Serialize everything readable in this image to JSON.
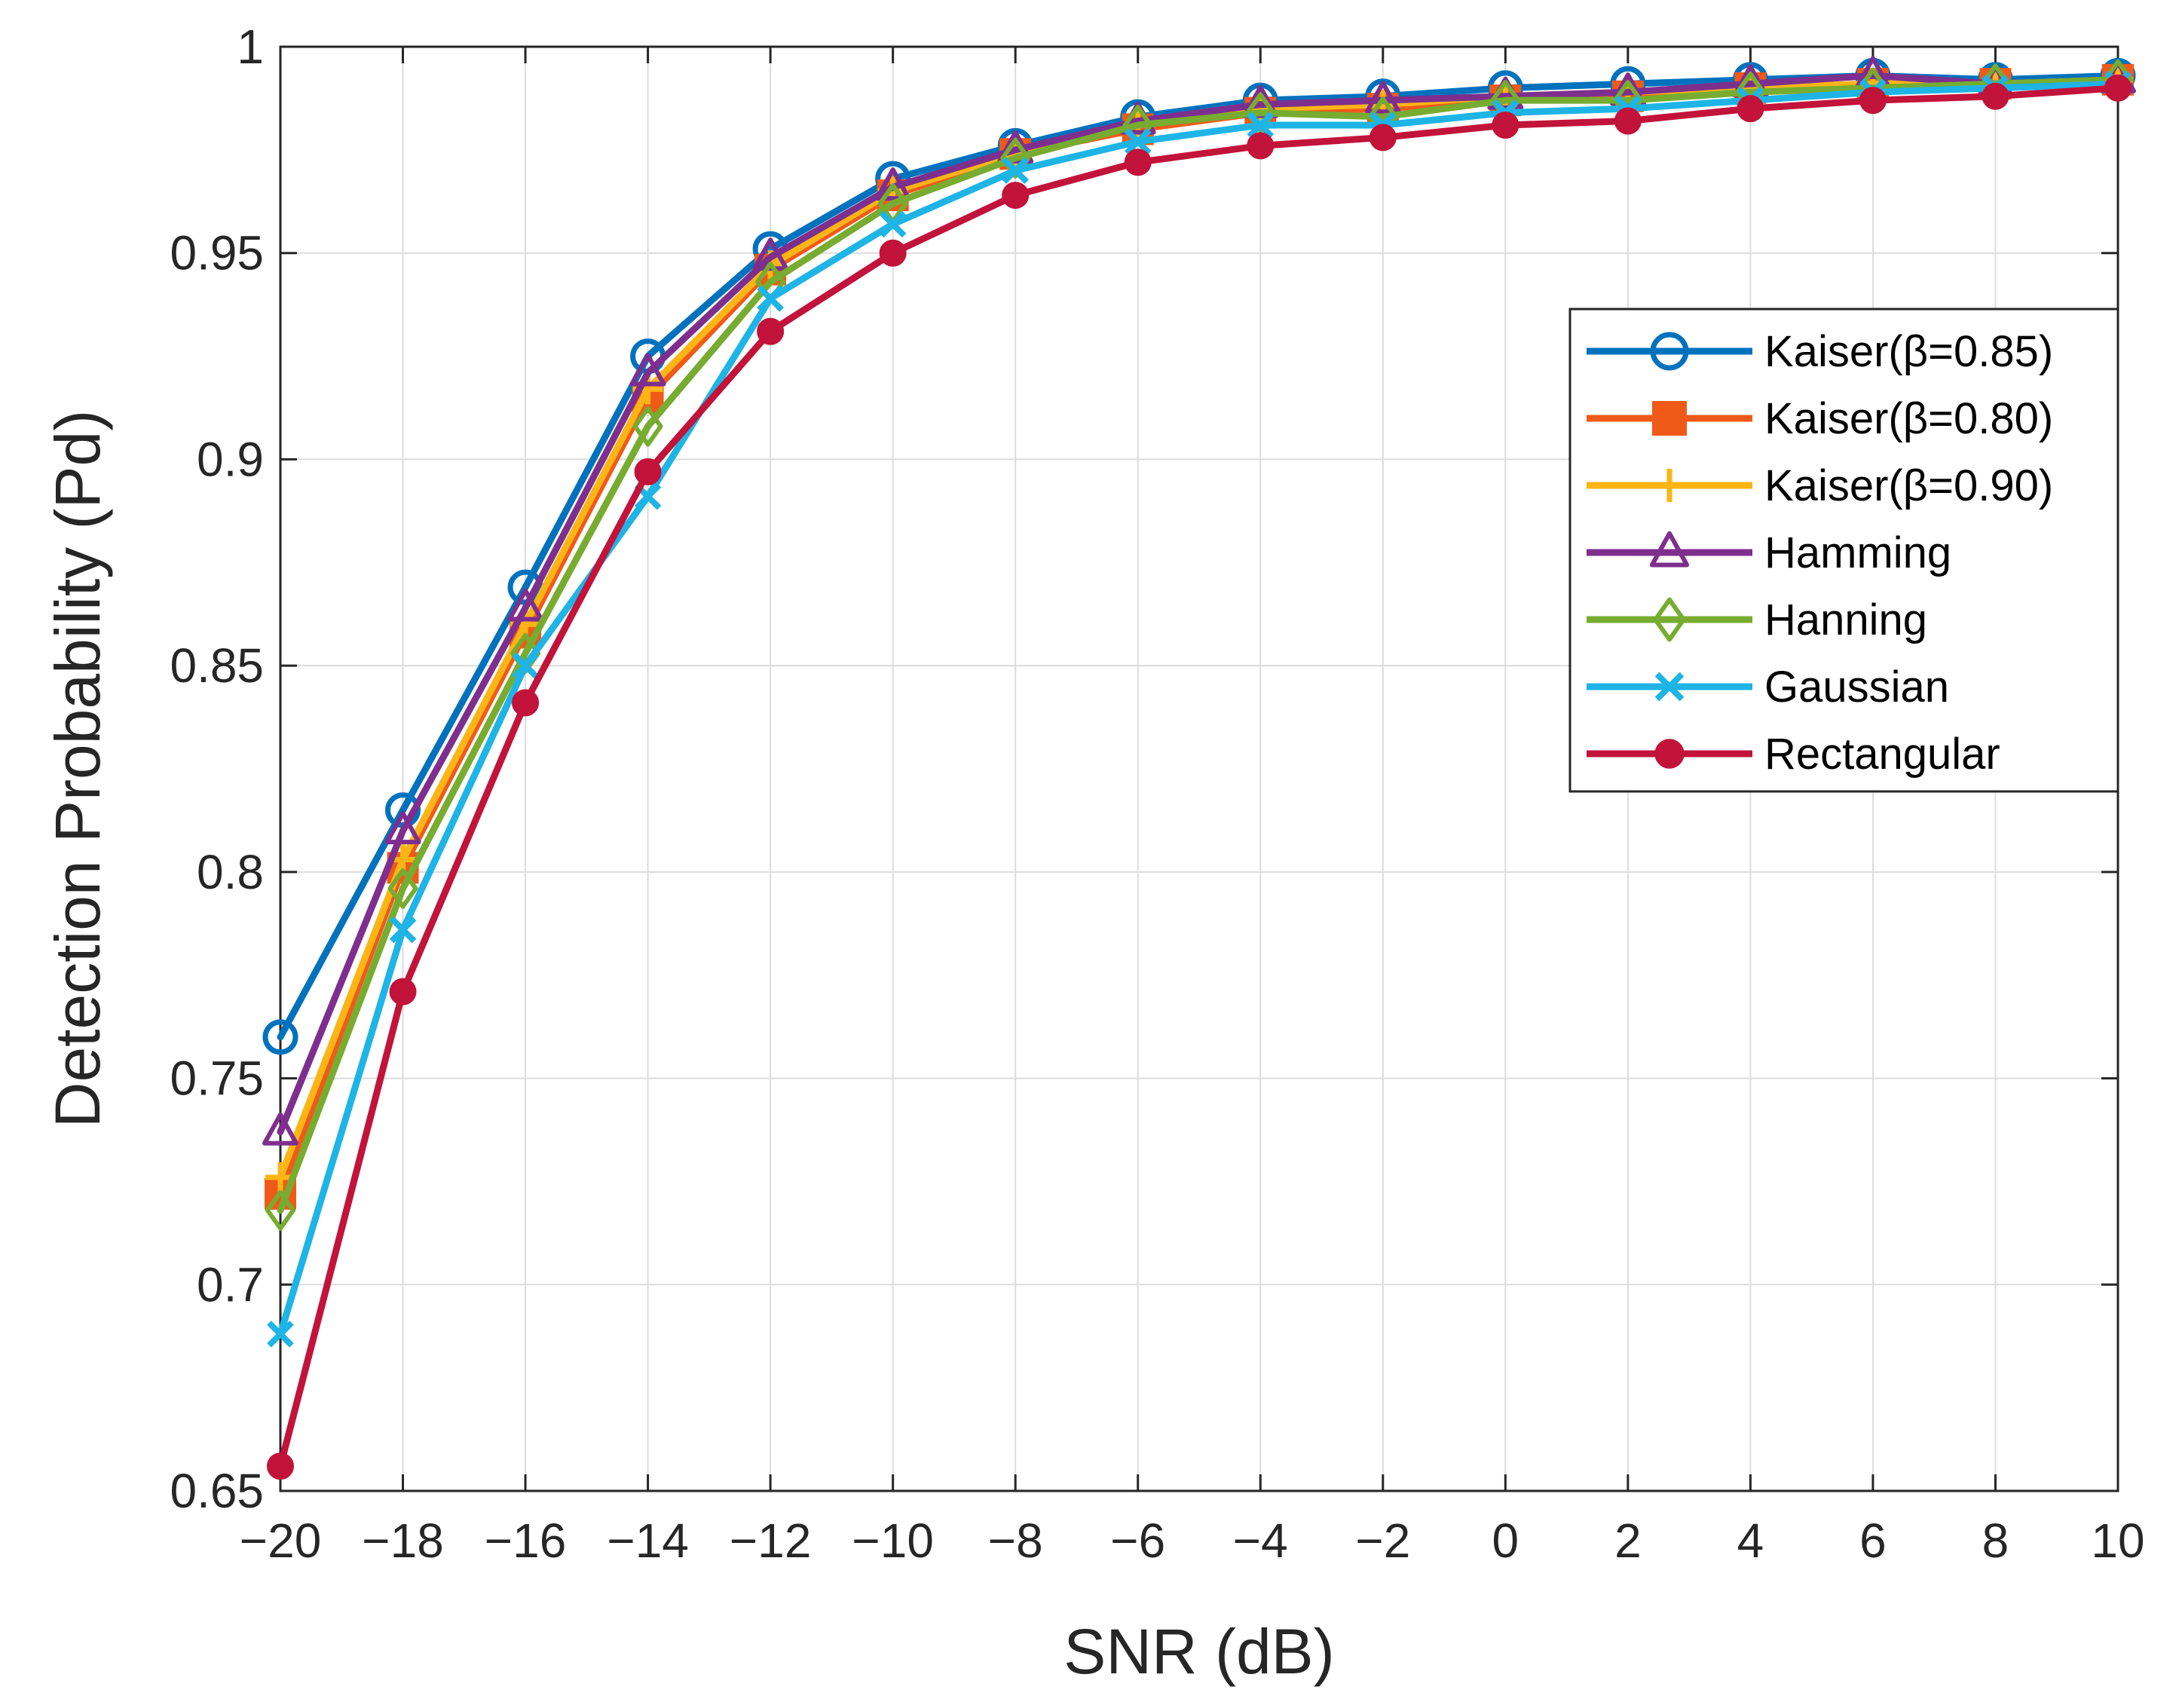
{
  "chart_data": {
    "type": "line",
    "title": "",
    "xlabel": "SNR (dB)",
    "ylabel": "Detection Probability (Pd)",
    "x": [
      -20,
      -18,
      -16,
      -14,
      -12,
      -10,
      -8,
      -6,
      -4,
      -2,
      0,
      2,
      4,
      6,
      8,
      10
    ],
    "xlim": [
      -20,
      10
    ],
    "ylim": [
      0.65,
      1
    ],
    "xticks": [
      -20,
      -18,
      -16,
      -14,
      -12,
      -10,
      -8,
      -6,
      -4,
      -2,
      0,
      2,
      4,
      6,
      8,
      10
    ],
    "xtick_labels": [
      "−20",
      "−18",
      "−16",
      "−14",
      "−12",
      "−10",
      "−8",
      "−6",
      "−4",
      "−2",
      "0",
      "2",
      "4",
      "6",
      "8",
      "10"
    ],
    "yticks": [
      0.65,
      0.7,
      0.75,
      0.8,
      0.85,
      0.9,
      0.95,
      1
    ],
    "ytick_labels": [
      "0.65",
      "0.7",
      "0.75",
      "0.8",
      "0.85",
      "0.9",
      "0.95",
      "1"
    ],
    "grid": true,
    "legend_position": "top-right",
    "series": [
      {
        "name": "Kaiser(β=0.85)",
        "color": "#0072BD",
        "marker": "circle",
        "values": [
          0.76,
          0.815,
          0.869,
          0.925,
          0.951,
          0.968,
          0.976,
          0.983,
          0.987,
          0.988,
          0.99,
          0.991,
          0.992,
          0.993,
          0.992,
          0.993
        ]
      },
      {
        "name": "Kaiser(β=0.80)",
        "color": "#F05A19",
        "marker": "square",
        "values": [
          0.722,
          0.801,
          0.858,
          0.915,
          0.946,
          0.964,
          0.974,
          0.98,
          0.984,
          0.985,
          0.987,
          0.988,
          0.99,
          0.991,
          0.991,
          0.992
        ]
      },
      {
        "name": "Kaiser(β=0.90)",
        "color": "#FDB515",
        "marker": "plus",
        "values": [
          0.726,
          0.803,
          0.86,
          0.917,
          0.947,
          0.965,
          0.974,
          0.981,
          0.985,
          0.986,
          0.988,
          0.989,
          0.99,
          0.991,
          0.991,
          0.992
        ]
      },
      {
        "name": "Hamming",
        "color": "#7E2F8E",
        "marker": "triangle",
        "values": [
          0.737,
          0.81,
          0.864,
          0.921,
          0.949,
          0.966,
          0.975,
          0.982,
          0.986,
          0.987,
          0.988,
          0.989,
          0.991,
          0.993,
          0.991,
          0.992
        ]
      },
      {
        "name": "Hanning",
        "color": "#77AC30",
        "marker": "diamond",
        "values": [
          0.718,
          0.796,
          0.853,
          0.908,
          0.943,
          0.962,
          0.973,
          0.981,
          0.984,
          0.983,
          0.987,
          0.987,
          0.989,
          0.99,
          0.991,
          0.992
        ]
      },
      {
        "name": "Gaussian",
        "color": "#1EB4E6",
        "marker": "x",
        "values": [
          0.688,
          0.786,
          0.85,
          0.891,
          0.939,
          0.957,
          0.97,
          0.977,
          0.981,
          0.981,
          0.984,
          0.985,
          0.987,
          0.989,
          0.99,
          0.991
        ]
      },
      {
        "name": "Rectangular",
        "color": "#C2133A",
        "marker": "dot",
        "values": [
          0.656,
          0.771,
          0.841,
          0.897,
          0.931,
          0.95,
          0.964,
          0.972,
          0.976,
          0.978,
          0.981,
          0.982,
          0.985,
          0.987,
          0.988,
          0.99
        ]
      }
    ]
  }
}
